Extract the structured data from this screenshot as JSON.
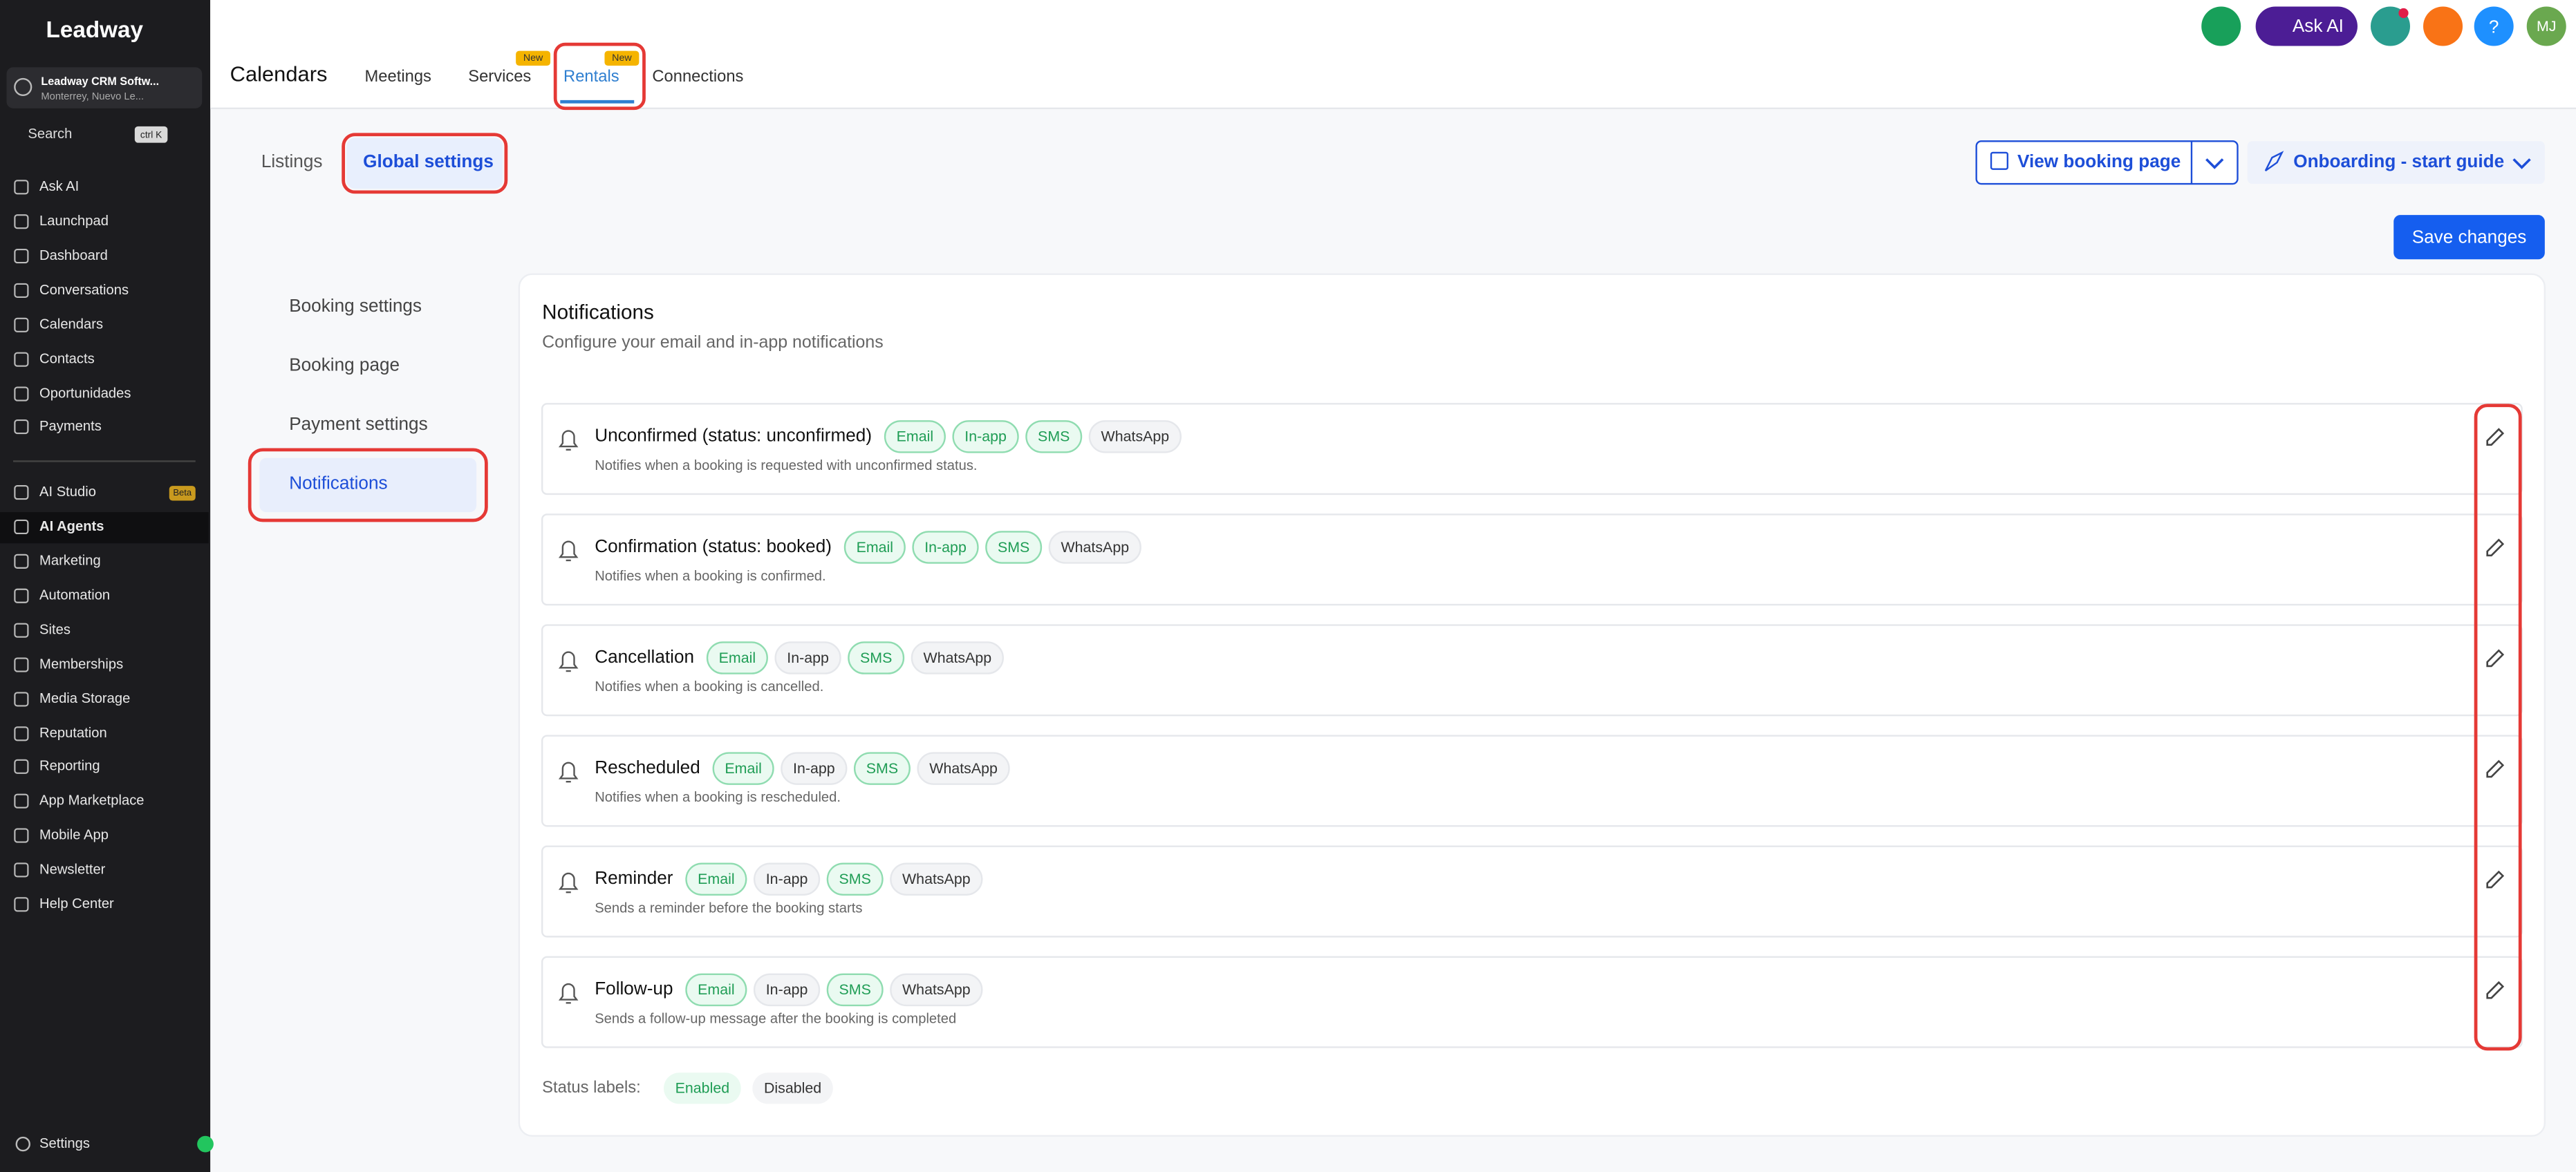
{
  "sidebar": {
    "brand": "Leadway",
    "account": {
      "name": "Leadway CRM Softw...",
      "location": "Monterrey, Nuevo Le..."
    },
    "search": "Search",
    "search_shortcut": "ctrl K",
    "items": [
      "Ask AI",
      "Launchpad",
      "Dashboard",
      "Conversations",
      "Calendars",
      "Contacts",
      "Oportunidades",
      "Payments",
      "AI Studio",
      "AI Agents",
      "Marketing",
      "Automation",
      "Sites",
      "Memberships",
      "Media Storage",
      "Reputation",
      "Reporting",
      "App Marketplace",
      "Mobile App",
      "Newsletter",
      "Help Center"
    ],
    "beta_badge": "Beta",
    "settings": "Settings"
  },
  "topbar": {
    "title": "Calendars",
    "tabs": [
      {
        "label": "Meetings"
      },
      {
        "label": "Services",
        "badge": "New"
      },
      {
        "label": "Rentals",
        "badge": "New"
      },
      {
        "label": "Connections"
      }
    ],
    "ask_ai": "Ask AI",
    "avatar": "MJ"
  },
  "subtabs": [
    "Listings",
    "Global settings"
  ],
  "buttons": {
    "view_booking_page": "View booking page",
    "onboarding": "Onboarding - start guide",
    "save": "Save changes"
  },
  "settings_nav": [
    "Booking settings",
    "Booking page",
    "Payment settings",
    "Notifications"
  ],
  "notifications": {
    "title": "Notifications",
    "subtitle": "Configure your email and in-app notifications",
    "rows": [
      {
        "title": "Unconfirmed (status: unconfirmed)",
        "description": "Notifies when a booking is requested with unconfirmed status.",
        "channels": [
          {
            "label": "Email",
            "enabled": true
          },
          {
            "label": "In-app",
            "enabled": true
          },
          {
            "label": "SMS",
            "enabled": true
          },
          {
            "label": "WhatsApp",
            "enabled": false
          }
        ]
      },
      {
        "title": "Confirmation (status: booked)",
        "description": "Notifies when a booking is confirmed.",
        "channels": [
          {
            "label": "Email",
            "enabled": true
          },
          {
            "label": "In-app",
            "enabled": true
          },
          {
            "label": "SMS",
            "enabled": true
          },
          {
            "label": "WhatsApp",
            "enabled": false
          }
        ]
      },
      {
        "title": "Cancellation",
        "description": "Notifies when a booking is cancelled.",
        "channels": [
          {
            "label": "Email",
            "enabled": true
          },
          {
            "label": "In-app",
            "enabled": false
          },
          {
            "label": "SMS",
            "enabled": true
          },
          {
            "label": "WhatsApp",
            "enabled": false
          }
        ]
      },
      {
        "title": "Rescheduled",
        "description": "Notifies when a booking is rescheduled.",
        "channels": [
          {
            "label": "Email",
            "enabled": true
          },
          {
            "label": "In-app",
            "enabled": false
          },
          {
            "label": "SMS",
            "enabled": true
          },
          {
            "label": "WhatsApp",
            "enabled": false
          }
        ]
      },
      {
        "title": "Reminder",
        "description": "Sends a reminder before the booking starts",
        "channels": [
          {
            "label": "Email",
            "enabled": true
          },
          {
            "label": "In-app",
            "enabled": false
          },
          {
            "label": "SMS",
            "enabled": true
          },
          {
            "label": "WhatsApp",
            "enabled": false
          }
        ]
      },
      {
        "title": "Follow-up",
        "description": "Sends a follow-up message after the booking is completed",
        "channels": [
          {
            "label": "Email",
            "enabled": true
          },
          {
            "label": "In-app",
            "enabled": false
          },
          {
            "label": "SMS",
            "enabled": true
          },
          {
            "label": "WhatsApp",
            "enabled": false
          }
        ]
      }
    ],
    "status_labels": {
      "label": "Status labels:",
      "enabled": "Enabled",
      "disabled": "Disabled"
    }
  }
}
